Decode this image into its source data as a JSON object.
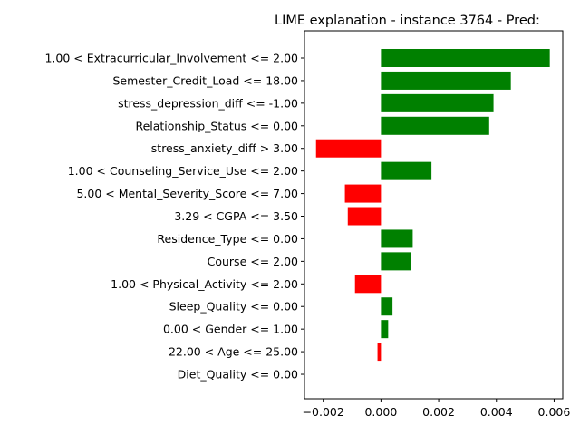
{
  "chart_data": {
    "type": "bar",
    "orientation": "horizontal",
    "title": "LIME explanation - instance 3764 - Pred:",
    "xlabel": "",
    "ylabel": "",
    "xlim": [
      -0.00265,
      0.0063
    ],
    "xticks": [
      -0.002,
      0.0,
      0.002,
      0.004,
      0.006
    ],
    "xtick_labels": [
      "−0.002",
      "0.000",
      "0.002",
      "0.004",
      "0.006"
    ],
    "grid": false,
    "legend": "none",
    "positive_color": "#008000",
    "negative_color": "#ff0000",
    "categories": [
      "1.00 < Extracurricular_Involvement <= 2.00",
      "Semester_Credit_Load <= 18.00",
      "stress_depression_diff <= -1.00",
      "Relationship_Status <= 0.00",
      "stress_anxiety_diff > 3.00",
      "1.00 < Counseling_Service_Use <= 2.00",
      "5.00 < Mental_Severity_Score <= 7.00",
      "3.29 < CGPA <= 3.50",
      "Residence_Type <= 0.00",
      "Course <= 2.00",
      "1.00 < Physical_Activity <= 2.00",
      "Sleep_Quality <= 0.00",
      "0.00 < Gender <= 1.00",
      "22.00 < Age <= 25.00",
      "Diet_Quality <= 0.00"
    ],
    "values": [
      0.00585,
      0.0045,
      0.0039,
      0.00375,
      -0.00225,
      0.00175,
      -0.00125,
      -0.00115,
      0.0011,
      0.00105,
      -0.0009,
      0.0004,
      0.00025,
      -0.00012,
      0.0
    ]
  }
}
